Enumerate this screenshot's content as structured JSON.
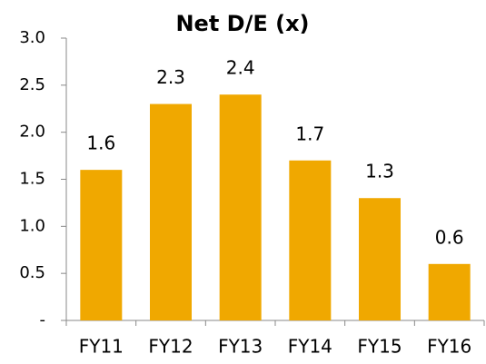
{
  "chart_data": {
    "type": "bar",
    "title": "Net D/E (x)",
    "categories": [
      "FY11",
      "FY12",
      "FY13",
      "FY14",
      "FY15",
      "FY16"
    ],
    "values": [
      1.6,
      2.3,
      2.4,
      1.7,
      1.3,
      0.6
    ],
    "color": "#f0a800",
    "ylim": [
      0,
      3
    ],
    "yticks": [
      {
        "value": 0,
        "label": "-"
      },
      0.5,
      {
        "value": 1,
        "label": "1.0"
      },
      1.5,
      {
        "value": 2,
        "label": "2.0"
      },
      2.5,
      {
        "value": 3,
        "label": "3.0"
      }
    ],
    "grid": false
  }
}
